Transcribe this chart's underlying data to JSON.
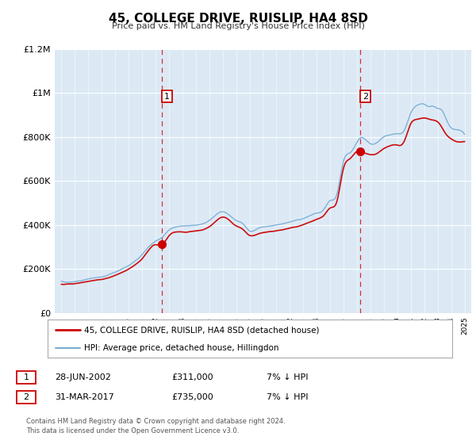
{
  "title": "45, COLLEGE DRIVE, RUISLIP, HA4 8SD",
  "subtitle": "Price paid vs. HM Land Registry's House Price Index (HPI)",
  "plot_bg_color": "#dce9f5",
  "fig_bg_color": "#ffffff",
  "ylim": [
    0,
    1200000
  ],
  "xlim_start": 1994.5,
  "xlim_end": 2025.5,
  "yticks": [
    0,
    200000,
    400000,
    600000,
    800000,
    1000000,
    1200000
  ],
  "ytick_labels": [
    "£0",
    "£200K",
    "£400K",
    "£600K",
    "£800K",
    "£1M",
    "£1.2M"
  ],
  "xticks": [
    1995,
    1996,
    1997,
    1998,
    1999,
    2000,
    2001,
    2002,
    2003,
    2004,
    2005,
    2006,
    2007,
    2008,
    2009,
    2010,
    2011,
    2012,
    2013,
    2014,
    2015,
    2016,
    2017,
    2018,
    2019,
    2020,
    2021,
    2022,
    2023,
    2024,
    2025
  ],
  "sale1_x": 2002.49,
  "sale1_y": 311000,
  "sale2_x": 2017.25,
  "sale2_y": 735000,
  "sale1_date": "28-JUN-2002",
  "sale1_price": "£311,000",
  "sale1_hpi": "7% ↓ HPI",
  "sale2_date": "31-MAR-2017",
  "sale2_price": "£735,000",
  "sale2_hpi": "7% ↓ HPI",
  "line1_color": "#cc0000",
  "line2_color": "#7aadd4",
  "line1_label": "45, COLLEGE DRIVE, RUISLIP, HA4 8SD (detached house)",
  "line2_label": "HPI: Average price, detached house, Hillingdon",
  "footer1": "Contains HM Land Registry data © Crown copyright and database right 2024.",
  "footer2": "This data is licensed under the Open Government Licence v3.0.",
  "hpi_key_x": [
    1995,
    1996,
    1997,
    1998,
    1999,
    2000,
    2001,
    2002,
    2002.49,
    2003,
    2004,
    2005,
    2006,
    2007,
    2007.5,
    2008,
    2008.5,
    2009,
    2009.5,
    2010,
    2011,
    2012,
    2013,
    2014,
    2014.5,
    2015,
    2015.5,
    2016,
    2016.5,
    2017,
    2017.25,
    2018,
    2018.5,
    2019,
    2019.5,
    2020,
    2020.5,
    2021,
    2021.3,
    2021.7,
    2022,
    2022.3,
    2022.7,
    2023,
    2023.3,
    2023.7,
    2024,
    2024.5,
    2025
  ],
  "hpi_key_y": [
    143000,
    143000,
    155000,
    165000,
    185000,
    215000,
    265000,
    330000,
    345000,
    375000,
    395000,
    400000,
    420000,
    460000,
    445000,
    420000,
    405000,
    375000,
    380000,
    390000,
    400000,
    415000,
    430000,
    455000,
    470000,
    510000,
    540000,
    695000,
    730000,
    775000,
    795000,
    770000,
    775000,
    800000,
    810000,
    815000,
    830000,
    910000,
    935000,
    950000,
    950000,
    940000,
    940000,
    930000,
    920000,
    870000,
    840000,
    830000,
    810000
  ],
  "pp_key_x": [
    1995,
    1996,
    1997,
    1998,
    1999,
    2000,
    2001,
    2002,
    2002.49,
    2003,
    2004,
    2005,
    2006,
    2007,
    2007.5,
    2008,
    2008.5,
    2009,
    2009.5,
    2010,
    2011,
    2012,
    2013,
    2014,
    2014.5,
    2015,
    2015.5,
    2016,
    2016.5,
    2017,
    2017.25,
    2018,
    2018.5,
    2019,
    2019.5,
    2020,
    2020.5,
    2021,
    2021.5,
    2022,
    2022.5,
    2023,
    2023.5,
    2024,
    2024.5,
    2025
  ],
  "pp_key_y": [
    133000,
    133000,
    144000,
    153000,
    172000,
    200000,
    247000,
    311000,
    311000,
    350000,
    368000,
    373000,
    392000,
    435000,
    420000,
    395000,
    382000,
    352000,
    357000,
    365000,
    373000,
    385000,
    400000,
    425000,
    440000,
    477000,
    508000,
    660000,
    700000,
    735000,
    735000,
    720000,
    725000,
    750000,
    760000,
    762000,
    778000,
    860000,
    880000,
    885000,
    878000,
    870000,
    825000,
    790000,
    778000,
    778000
  ]
}
